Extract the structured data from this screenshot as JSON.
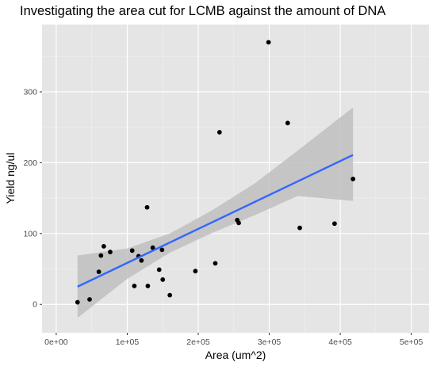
{
  "chart_data": {
    "type": "scatter",
    "title": "Investigating the area cut for LCMB against the amount of DNA",
    "xlabel": "Area (um^2)",
    "ylabel": "Yield ng/ul",
    "xlim": [
      -20000,
      525000
    ],
    "ylim": [
      -40,
      395
    ],
    "x_ticks": [
      0,
      100000,
      200000,
      300000,
      400000,
      500000
    ],
    "x_tick_labels": [
      "0e+00",
      "1e+05",
      "2e+05",
      "3e+05",
      "4e+05",
      "5e+05"
    ],
    "y_ticks": [
      0,
      100,
      200,
      300
    ],
    "y_tick_labels": [
      "0",
      "100",
      "200",
      "300"
    ],
    "grid": true,
    "points": [
      {
        "x": 30000,
        "y": 3
      },
      {
        "x": 47000,
        "y": 7
      },
      {
        "x": 60000,
        "y": 46
      },
      {
        "x": 63000,
        "y": 69
      },
      {
        "x": 67000,
        "y": 82
      },
      {
        "x": 76000,
        "y": 74
      },
      {
        "x": 107000,
        "y": 76
      },
      {
        "x": 110000,
        "y": 26
      },
      {
        "x": 116000,
        "y": 68
      },
      {
        "x": 120000,
        "y": 62
      },
      {
        "x": 128000,
        "y": 137
      },
      {
        "x": 129000,
        "y": 26
      },
      {
        "x": 136000,
        "y": 80
      },
      {
        "x": 145000,
        "y": 49
      },
      {
        "x": 149000,
        "y": 77
      },
      {
        "x": 150000,
        "y": 35
      },
      {
        "x": 160000,
        "y": 13
      },
      {
        "x": 196000,
        "y": 47
      },
      {
        "x": 224000,
        "y": 58
      },
      {
        "x": 230000,
        "y": 243
      },
      {
        "x": 255000,
        "y": 119
      },
      {
        "x": 257000,
        "y": 115
      },
      {
        "x": 299000,
        "y": 370
      },
      {
        "x": 326000,
        "y": 256
      },
      {
        "x": 343000,
        "y": 108
      },
      {
        "x": 392000,
        "y": 114
      },
      {
        "x": 418000,
        "y": 177
      }
    ],
    "fit_line": {
      "method": "linear",
      "x": [
        30000,
        418000
      ],
      "y": [
        25,
        211
      ]
    },
    "confidence_band": {
      "x": [
        30000,
        100000,
        160000,
        220000,
        280000,
        340000,
        418000
      ],
      "upper": [
        69,
        79,
        100,
        133,
        171,
        217,
        278
      ],
      "lower": [
        -19,
        36,
        73,
        101,
        126,
        153,
        146
      ]
    },
    "colors": {
      "panel_background": "#e5e5e5",
      "grid_major": "#ffffff",
      "grid_minor": "#f0f0f0",
      "points": "#000000",
      "fit_line": "#3366ff",
      "confidence_band": "#bfbfbf"
    }
  }
}
